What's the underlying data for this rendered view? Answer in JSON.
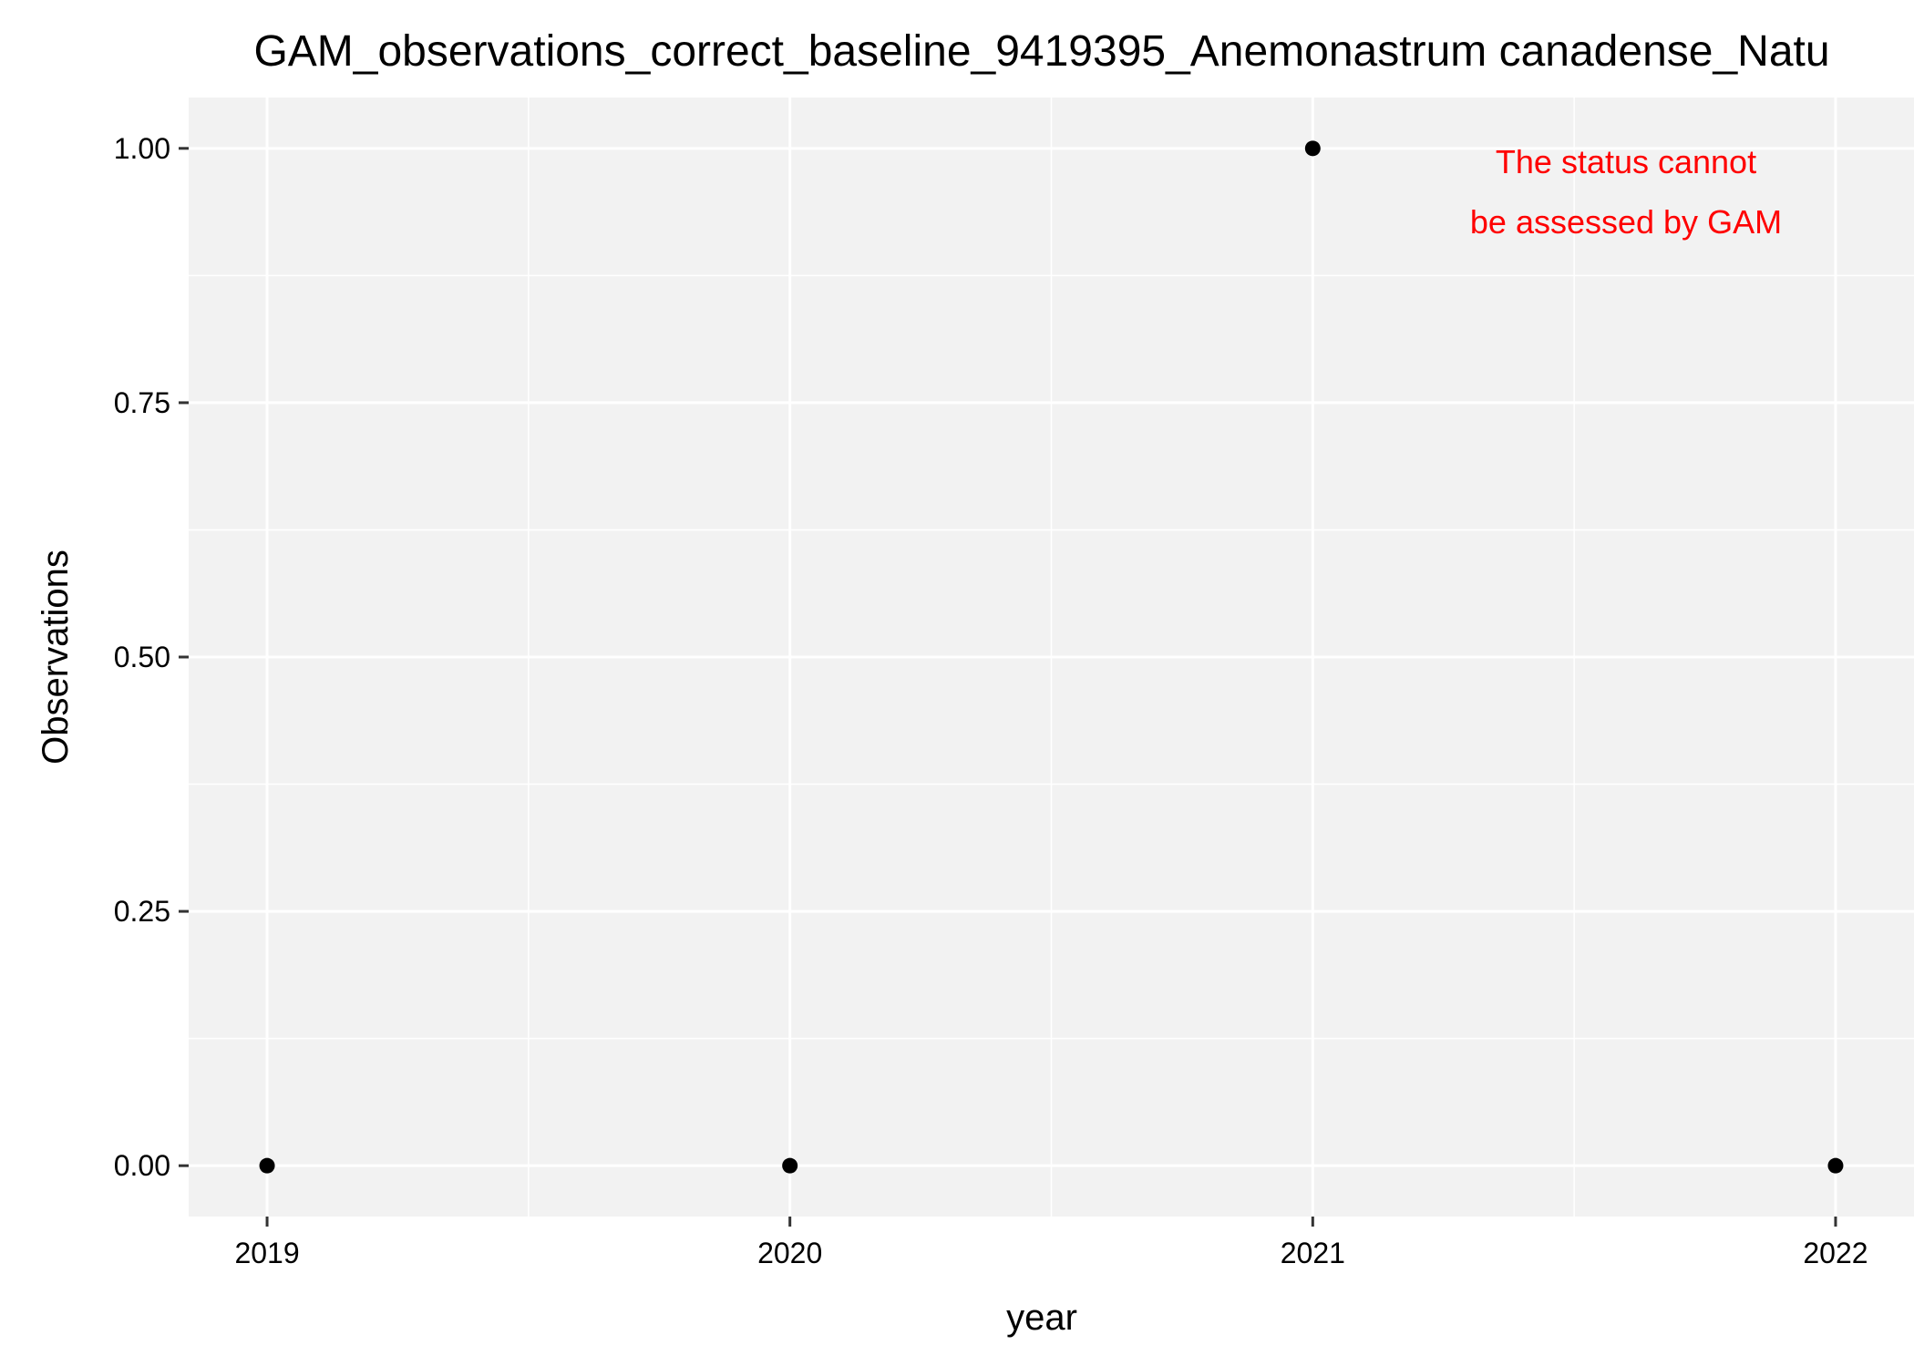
{
  "chart_data": {
    "type": "scatter",
    "title": "GAM_observations_correct_baseline_9419395_Anemonastrum canadense_Natu",
    "xlabel": "year",
    "ylabel": "Observations",
    "xlim": [
      2018.85,
      2022.15
    ],
    "ylim": [
      -0.05,
      1.05
    ],
    "x_ticks": [
      2019,
      2020,
      2021,
      2022
    ],
    "x_tick_labels": [
      "2019",
      "2020",
      "2021",
      "2022"
    ],
    "y_ticks": [
      0,
      0.25,
      0.5,
      0.75,
      1
    ],
    "y_tick_labels": [
      "0.00",
      "0.25",
      "0.50",
      "0.75",
      "1.00"
    ],
    "grid": true,
    "legend": "none",
    "points": [
      {
        "x": 2019,
        "y": 0
      },
      {
        "x": 2020,
        "y": 0
      },
      {
        "x": 2021,
        "y": 1
      },
      {
        "x": 2022,
        "y": 0
      }
    ],
    "annotation": {
      "lines": [
        "The status cannot",
        "be assessed by GAM"
      ],
      "color": "#ff0000"
    },
    "colors": {
      "panel": "#f2f2f2",
      "grid": "#ffffff",
      "point": "#000000",
      "axis_text": "#000000"
    }
  }
}
